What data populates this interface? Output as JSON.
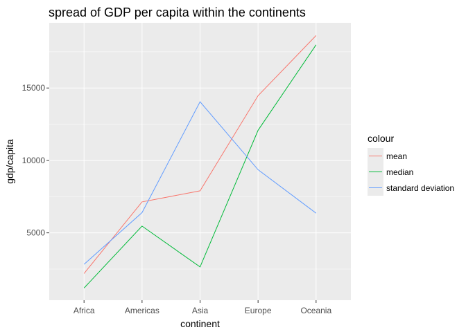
{
  "chart_data": {
    "type": "line",
    "title": "spread of GDP per capita within the continents",
    "xlabel": "continent",
    "ylabel": "gdp/capita",
    "categories": [
      "Africa",
      "Americas",
      "Asia",
      "Europe",
      "Oceania"
    ],
    "ylim": [
      350,
      19500
    ],
    "yticks": [
      5000,
      10000,
      15000
    ],
    "yticklabels": [
      "5000",
      "10000",
      "15000"
    ],
    "grid": true,
    "legend": {
      "title": "colour",
      "position": "right"
    },
    "series": [
      {
        "name": "mean",
        "color": "#F8766D",
        "values": [
          2194,
          7136,
          7902,
          14469,
          18622
        ]
      },
      {
        "name": "median",
        "color": "#00BA38",
        "values": [
          1192,
          5466,
          2647,
          12082,
          17983
        ]
      },
      {
        "name": "standard deviation",
        "color": "#619CFF",
        "values": [
          2828,
          6397,
          14045,
          9355,
          6359
        ]
      }
    ],
    "colors": {
      "panel_background": "#EBEBEB",
      "grid_major": "#FFFFFF",
      "tick_text": "#4D4D4D",
      "tick_mark": "#333333"
    }
  }
}
